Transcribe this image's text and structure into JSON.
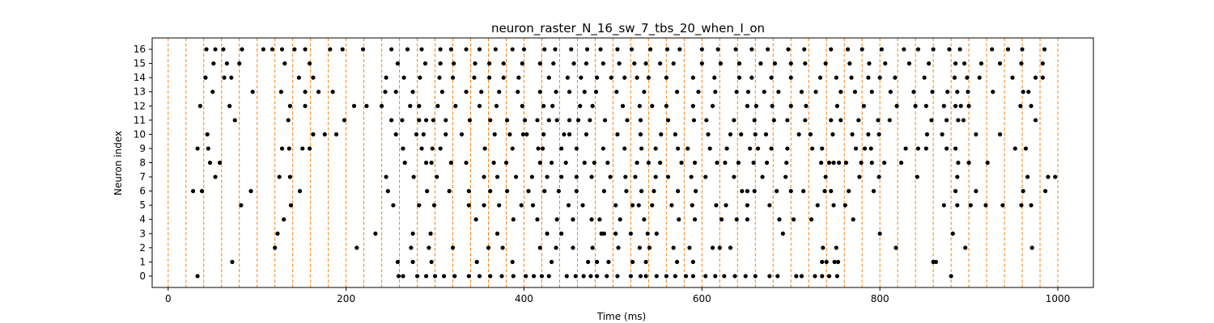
{
  "chart_data": {
    "type": "scatter",
    "title": "neuron_raster_N_16_sw_7_tbs_20_when_I_on",
    "xlabel": "Time (ms)",
    "ylabel": "Neuron index",
    "xlim": [
      -18,
      1040
    ],
    "ylim": [
      -0.8,
      16.8
    ],
    "x_ticks": [
      0,
      200,
      400,
      600,
      800,
      1000
    ],
    "y_ticks": [
      0,
      1,
      2,
      3,
      4,
      5,
      6,
      7,
      8,
      9,
      10,
      11,
      12,
      13,
      14,
      15,
      16
    ],
    "grid": false,
    "marker_color": "#000000",
    "vlines": {
      "color": "#ff7f0e",
      "style": "dashed",
      "x": [
        0,
        20,
        40,
        60,
        80,
        100,
        120,
        140,
        160,
        180,
        200,
        220,
        240,
        260,
        280,
        300,
        320,
        340,
        360,
        380,
        400,
        420,
        440,
        460,
        480,
        500,
        520,
        540,
        560,
        580,
        600,
        620,
        640,
        660,
        680,
        700,
        720,
        740,
        760,
        780,
        800,
        820,
        840,
        860,
        880,
        900,
        920,
        940,
        960,
        980,
        1000
      ]
    },
    "series": [
      {
        "neuron": 0,
        "x": [
          33,
          259,
          264,
          280,
          290,
          300,
          310,
          322,
          338,
          350,
          362,
          375,
          388,
          402,
          411,
          420,
          428,
          448,
          458,
          467,
          475,
          482,
          493,
          505,
          520,
          531,
          537,
          549,
          560,
          570,
          582,
          590,
          604,
          615,
          625,
          637,
          649,
          660,
          676,
          685,
          706,
          712,
          727,
          735,
          743,
          752,
          880
        ]
      },
      {
        "neuron": 1,
        "x": [
          72,
          258,
          275,
          296,
          347,
          387,
          431,
          472,
          482,
          495,
          522,
          537,
          572,
          590,
          749,
          735,
          740,
          753,
          860,
          863
        ]
      },
      {
        "neuron": 2,
        "x": [
          120,
          212,
          273,
          293,
          320,
          360,
          376,
          418,
          436,
          455,
          477,
          506,
          530,
          541,
          568,
          586,
          612,
          620,
          632,
          736,
          751,
          818,
          896,
          971
        ]
      },
      {
        "neuron": 3,
        "x": [
          123,
          233,
          275,
          295,
          370,
          426,
          442,
          487,
          490,
          503,
          520,
          539,
          549,
          691,
          800,
          882
        ]
      },
      {
        "neuron": 4,
        "x": [
          130,
          346,
          388,
          415,
          437,
          455,
          485,
          476,
          508,
          535,
          574,
          592,
          622,
          639,
          651,
          687,
          703,
          723,
          770
        ]
      },
      {
        "neuron": 5,
        "x": [
          82,
          138,
          253,
          282,
          299,
          338,
          355,
          372,
          397,
          410,
          450,
          466,
          503,
          522,
          529,
          544,
          566,
          589,
          616,
          627,
          651,
          676,
          730,
          748,
          761,
          872,
          887,
          902,
          919,
          938,
          959,
          970
        ]
      },
      {
        "neuron": 6,
        "x": [
          28,
          38,
          93,
          148,
          247,
          291,
          316,
          338,
          362,
          381,
          405,
          423,
          439,
          459,
          490,
          515,
          532,
          546,
          573,
          593,
          645,
          651,
          659,
          684,
          700,
          714,
          738,
          745,
          765,
          793,
          885,
          961,
          986,
          908
        ]
      },
      {
        "neuron": 7,
        "x": [
          53,
          125,
          137,
          245,
          276,
          302,
          355,
          370,
          391,
          409,
          426,
          442,
          459,
          476,
          497,
          514,
          525,
          548,
          562,
          588,
          604,
          636,
          668,
          694,
          739,
          777,
          799,
          842,
          887,
          966,
          989,
          997
        ]
      },
      {
        "neuron": 8,
        "x": [
          47,
          58,
          266,
          290,
          296,
          318,
          335,
          366,
          380,
          418,
          431,
          447,
          468,
          479,
          494,
          527,
          540,
          553,
          577,
          592,
          617,
          626,
          641,
          658,
          673,
          695,
          734,
          743,
          748,
          754,
          762,
          779,
          791,
          805,
          824,
          888,
          900,
          921
        ]
      },
      {
        "neuron": 9,
        "x": [
          33,
          45,
          128,
          136,
          151,
          159,
          264,
          285,
          297,
          306,
          356,
          387,
          416,
          421,
          442,
          459,
          489,
          513,
          532,
          548,
          573,
          584,
          609,
          628,
          654,
          663,
          678,
          696,
          724,
          735,
          773,
          783,
          790,
          829,
          843,
          852,
          875,
          885,
          952,
          964
        ]
      },
      {
        "neuron": 10,
        "x": [
          44,
          163,
          176,
          189,
          256,
          279,
          287,
          312,
          330,
          367,
          384,
          399,
          403,
          422,
          445,
          451,
          470,
          505,
          531,
          554,
          570,
          607,
          632,
          644,
          660,
          672,
          709,
          722,
          747,
          769,
          787,
          799,
          853,
          870,
          908,
          935
        ]
      },
      {
        "neuron": 11,
        "x": [
          75,
          135,
          198,
          251,
          263,
          282,
          290,
          298,
          312,
          339,
          362,
          381,
          401,
          415,
          428,
          437,
          451,
          461,
          474,
          491,
          516,
          531,
          562,
          591,
          605,
          636,
          659,
          681,
          696,
          716,
          745,
          756,
          776,
          798,
          811,
          858,
          875,
          888,
          894,
          975
        ]
      },
      {
        "neuron": 12,
        "x": [
          36,
          69,
          137,
          154,
          209,
          223,
          240,
          272,
          282,
          303,
          323,
          350,
          369,
          398,
          422,
          432,
          463,
          477,
          511,
          530,
          544,
          560,
          590,
          612,
          651,
          661,
          679,
          700,
          717,
          752,
          782,
          819,
          840,
          852,
          872,
          885,
          891,
          900,
          958,
          970
        ]
      },
      {
        "neuron": 13,
        "x": [
          50,
          95,
          127,
          154,
          169,
          185,
          244,
          256,
          275,
          308,
          335,
          352,
          372,
          393,
          418,
          436,
          451,
          468,
          481,
          504,
          535,
          572,
          596,
          615,
          639,
          652,
          670,
          686,
          712,
          728,
          756,
          772,
          791,
          812,
          838,
          859,
          876,
          887,
          899,
          927,
          961,
          967
        ]
      },
      {
        "neuron": 14,
        "x": [
          42,
          63,
          71,
          147,
          163,
          245,
          265,
          283,
          305,
          320,
          344,
          361,
          377,
          394,
          428,
          449,
          464,
          482,
          498,
          513,
          527,
          540,
          560,
          590,
          614,
          642,
          656,
          678,
          700,
          733,
          751,
          768,
          787,
          800,
          817,
          850,
          884,
          898,
          912,
          949,
          975,
          983
        ]
      },
      {
        "neuron": 15,
        "x": [
          51,
          66,
          80,
          131,
          159,
          258,
          289,
          306,
          321,
          345,
          361,
          377,
          398,
          418,
          433,
          456,
          470,
          489,
          507,
          524,
          537,
          553,
          568,
          600,
          621,
          642,
          666,
          682,
          700,
          716,
          739,
          766,
          788,
          806,
          833,
          855,
          885,
          895,
          914,
          935,
          959,
          983
        ]
      },
      {
        "neuron": 16,
        "x": [
          43,
          53,
          62,
          83,
          107,
          117,
          128,
          142,
          154,
          182,
          196,
          219,
          251,
          269,
          285,
          306,
          318,
          335,
          350,
          368,
          387,
          400,
          423,
          435,
          453,
          471,
          486,
          505,
          521,
          542,
          561,
          575,
          600,
          618,
          638,
          656,
          674,
          697,
          715,
          745,
          764,
          780,
          802,
          827,
          843,
          860,
          878,
          890,
          926,
          944,
          960,
          985
        ]
      }
    ]
  }
}
